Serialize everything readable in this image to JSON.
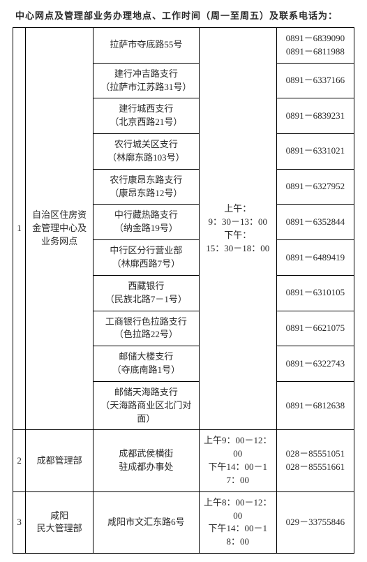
{
  "title": "中心网点及管理部业务办理地点、工作时间（周一至周五）及联系电话为：",
  "section1": {
    "index": "1",
    "dept_label": "自治区住房资金管理中心及业务网点",
    "hours": {
      "am_label": "上午：",
      "am_time": "9：30－13：00",
      "pm_label": "下午：",
      "pm_time": "15：30－18：00"
    },
    "rows": [
      {
        "loc_l1": "拉萨市夺底路55号",
        "loc_l2": "",
        "phone_l1": "0891－6839090",
        "phone_l2": "0891－6811988"
      },
      {
        "loc_l1": "建行冲吉路支行",
        "loc_l2": "（拉萨市江苏路31号）",
        "phone_l1": "0891－6337166",
        "phone_l2": ""
      },
      {
        "loc_l1": "建行城西支行",
        "loc_l2": "（北京西路21号）",
        "phone_l1": "0891－6839231",
        "phone_l2": ""
      },
      {
        "loc_l1": "农行城关区支行",
        "loc_l2": "（林廓东路103号）",
        "phone_l1": "0891－6331021",
        "phone_l2": ""
      },
      {
        "loc_l1": "农行康昂东路支行",
        "loc_l2": "（康昂东路12号）",
        "phone_l1": "0891－6327952",
        "phone_l2": ""
      },
      {
        "loc_l1": "中行藏热路支行",
        "loc_l2": "（纳金路19号）",
        "phone_l1": "0891－6352844",
        "phone_l2": ""
      },
      {
        "loc_l1": "中行区分行营业部",
        "loc_l2": "（林廓西路7号）",
        "phone_l1": "0891－6489419",
        "phone_l2": ""
      },
      {
        "loc_l1": "西藏银行",
        "loc_l2": "（民族北路7－1号）",
        "phone_l1": "0891－6310105",
        "phone_l2": ""
      },
      {
        "loc_l1": "工商银行色拉路支行",
        "loc_l2": "（色拉路22号）",
        "phone_l1": "0891－6621075",
        "phone_l2": ""
      },
      {
        "loc_l1": "邮储大楼支行",
        "loc_l2": "（夺底南路1号）",
        "phone_l1": "0891－6322743",
        "phone_l2": ""
      },
      {
        "loc_l1": "邮储天海路支行",
        "loc_l2": "（天海路商业区北门对面）",
        "phone_l1": "0891－6812638",
        "phone_l2": ""
      }
    ]
  },
  "section2": {
    "index": "2",
    "dept_label": "成都管理部",
    "loc_l1": "成都武侯横街",
    "loc_l2": "驻成都办事处",
    "hours_am": "上午9：00－12：00",
    "hours_pm": "下午14：00－17：00",
    "phone_l1": "028－85551051",
    "phone_l2": "028－85551661"
  },
  "section3": {
    "index": "3",
    "dept_l1": "咸阳",
    "dept_l2": "民大管理部",
    "loc": "咸阳市文汇东路6号",
    "hours_am": "上午8：00－12：00",
    "hours_pm": "下午14：00－18：00",
    "phone": "029－33755846"
  }
}
